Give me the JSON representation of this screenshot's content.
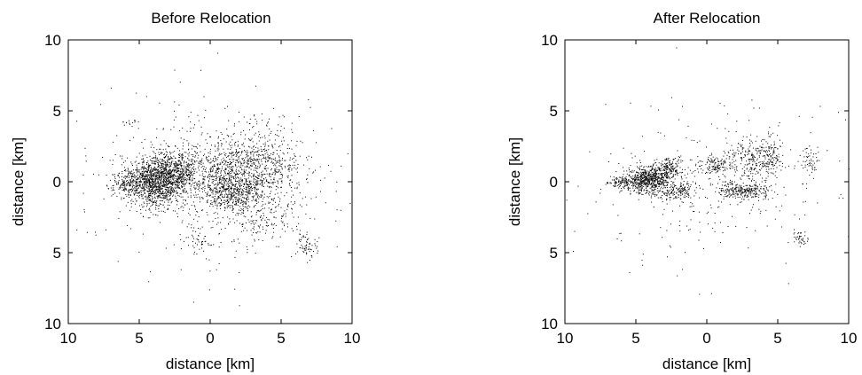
{
  "chart_data": [
    {
      "type": "scatter",
      "title": "Before Relocation",
      "xlabel": "distance [km]",
      "ylabel": "distance [km]",
      "xlim": [
        -10,
        10
      ],
      "ylim": [
        -10,
        10
      ],
      "x_tick_labels": [
        "10",
        "5",
        "0",
        "5",
        "10"
      ],
      "y_tick_labels": [
        "10",
        "5",
        "0",
        "5",
        "10"
      ],
      "grid": false,
      "marker_color": "#000000",
      "clusters": [
        {
          "cx": -4.0,
          "cy": 0.0,
          "sx": 1.0,
          "sy": 0.9,
          "n": 1100
        },
        {
          "cx": -2.4,
          "cy": 0.8,
          "sx": 0.8,
          "sy": 0.8,
          "n": 450
        },
        {
          "cx": 2.8,
          "cy": 0.9,
          "sx": 1.7,
          "sy": 1.3,
          "n": 850
        },
        {
          "cx": 1.6,
          "cy": -0.8,
          "sx": 1.0,
          "sy": 0.6,
          "n": 350
        },
        {
          "cx": 0.0,
          "cy": 0.2,
          "sx": 1.2,
          "sy": 1.0,
          "n": 250
        },
        {
          "cx": 3.8,
          "cy": -2.5,
          "sx": 1.4,
          "sy": 0.9,
          "n": 150
        },
        {
          "cx": -5.8,
          "cy": 0.0,
          "sx": 0.6,
          "sy": 0.4,
          "n": 150
        },
        {
          "cx": 6.8,
          "cy": -4.5,
          "sx": 0.4,
          "sy": 0.4,
          "n": 60
        },
        {
          "cx": -0.8,
          "cy": -4.2,
          "sx": 0.5,
          "sy": 0.6,
          "n": 40
        },
        {
          "cx": -5.8,
          "cy": 4.3,
          "sx": 0.3,
          "sy": 0.2,
          "n": 12
        },
        {
          "cx": 0.0,
          "cy": 0.0,
          "sx": 4.5,
          "sy": 2.8,
          "n": 500
        }
      ]
    },
    {
      "type": "scatter",
      "title": "After Relocation",
      "xlabel": "distance [km]",
      "ylabel": "distance [km]",
      "xlim": [
        -10,
        10
      ],
      "ylim": [
        -10,
        10
      ],
      "x_tick_labels": [
        "10",
        "5",
        "0",
        "5",
        "10"
      ],
      "y_tick_labels": [
        "10",
        "5",
        "0",
        "5",
        "10"
      ],
      "grid": false,
      "marker_color": "#000000",
      "clusters": [
        {
          "cx": -4.2,
          "cy": 0.1,
          "sx": 0.8,
          "sy": 0.5,
          "n": 650
        },
        {
          "cx": -2.8,
          "cy": 0.9,
          "sx": 0.5,
          "sy": 0.4,
          "n": 200
        },
        {
          "cx": -2.0,
          "cy": -0.6,
          "sx": 0.7,
          "sy": 0.3,
          "n": 150
        },
        {
          "cx": 2.5,
          "cy": -0.6,
          "sx": 0.9,
          "sy": 0.3,
          "n": 260
        },
        {
          "cx": 3.3,
          "cy": 1.5,
          "sx": 0.9,
          "sy": 0.8,
          "n": 260
        },
        {
          "cx": 0.6,
          "cy": 1.2,
          "sx": 0.6,
          "sy": 0.3,
          "n": 120
        },
        {
          "cx": 4.6,
          "cy": 2.0,
          "sx": 0.3,
          "sy": 0.7,
          "n": 80
        },
        {
          "cx": -6.0,
          "cy": 0.0,
          "sx": 0.5,
          "sy": 0.2,
          "n": 90
        },
        {
          "cx": 7.2,
          "cy": 1.5,
          "sx": 0.3,
          "sy": 0.6,
          "n": 50
        },
        {
          "cx": 6.5,
          "cy": -4.0,
          "sx": 0.3,
          "sy": 0.3,
          "n": 40
        },
        {
          "cx": 0.0,
          "cy": 0.0,
          "sx": 4.5,
          "sy": 2.8,
          "n": 300
        }
      ]
    }
  ]
}
